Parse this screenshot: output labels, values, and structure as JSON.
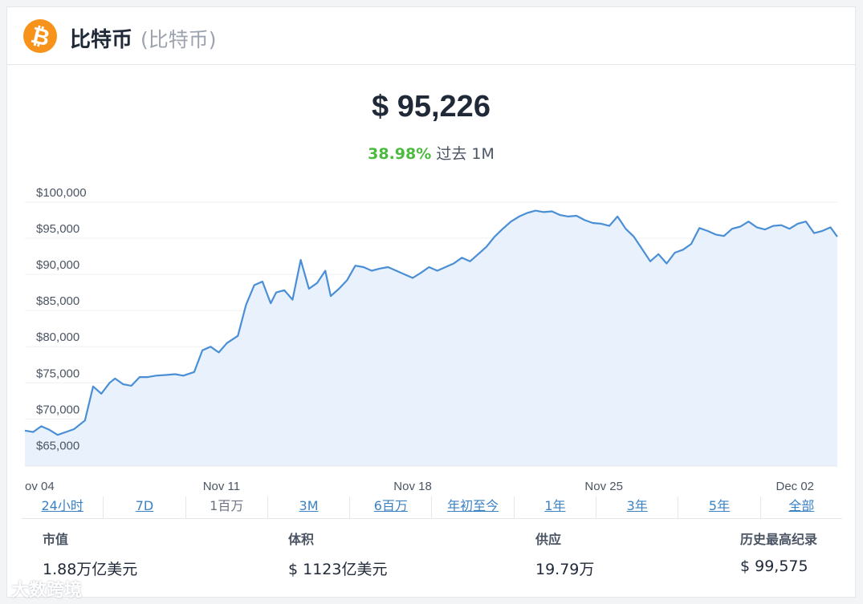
{
  "header": {
    "icon": "bitcoin-icon",
    "name": "比特币",
    "subtitle": "(比特币)"
  },
  "price": "$ 95,226",
  "change": {
    "percent": "38.98%",
    "period": "过去 1M"
  },
  "colors": {
    "line": "#4a8fd6",
    "fill": "#e8f1fc",
    "positive": "#4cba3e",
    "brand": "#f7931a"
  },
  "chart_data": {
    "type": "area",
    "x_tick_labels": [
      "ov 04",
      "Nov 11",
      "Nov 18",
      "Nov 25",
      "Dec 02"
    ],
    "y_tick_labels": [
      "$100,000",
      "$95,000",
      "$90,000",
      "$85,000",
      "$80,000",
      "$75,000",
      "$70,000",
      "$65,000"
    ],
    "y_ticks": [
      100000,
      95000,
      90000,
      85000,
      80000,
      75000,
      70000,
      65000
    ],
    "ylim": [
      63500,
      101200
    ],
    "xlim": [
      3.8,
      33.55
    ],
    "x_tick_values": [
      4,
      11,
      18,
      25,
      32
    ],
    "grid": true,
    "series": [
      {
        "x": [
          3.8,
          4.1,
          4.4,
          4.7,
          5.0,
          5.3,
          5.6,
          6.0,
          6.3,
          6.6,
          6.9,
          7.1,
          7.4,
          7.7,
          8.0,
          8.3,
          8.6,
          9.0,
          9.3,
          9.6,
          10.0,
          10.3,
          10.6,
          10.9,
          11.2,
          11.6,
          11.9,
          12.2,
          12.5,
          12.8,
          13.0,
          13.3,
          13.6,
          13.9,
          14.2,
          14.5,
          14.8,
          15.0,
          15.3,
          15.6,
          15.9,
          16.2,
          16.5,
          16.8,
          17.1,
          17.4,
          17.7,
          18.0,
          18.3,
          18.6,
          18.9,
          19.2,
          19.5,
          19.8,
          20.1,
          20.4,
          20.7,
          21.0,
          21.3,
          21.6,
          21.9,
          22.2,
          22.5,
          22.8,
          23.1,
          23.4,
          23.7,
          24.0,
          24.3,
          24.6,
          24.9,
          25.2,
          25.5,
          25.8,
          26.1,
          26.4,
          26.7,
          27.0,
          27.3,
          27.6,
          27.9,
          28.2,
          28.5,
          28.8,
          29.1,
          29.4,
          29.7,
          30.0,
          30.3,
          30.6,
          30.9,
          31.2,
          31.5,
          31.8,
          32.1,
          32.4,
          32.7,
          33.0,
          33.3,
          33.55
        ],
        "y": [
          68400,
          68200,
          69000,
          68500,
          67800,
          68200,
          68600,
          69800,
          74500,
          73500,
          75000,
          75600,
          74800,
          74600,
          75800,
          75800,
          76000,
          76100,
          76200,
          76000,
          76500,
          79500,
          80000,
          79200,
          80500,
          81500,
          85800,
          88500,
          89000,
          86000,
          87500,
          87800,
          86500,
          92000,
          88000,
          88800,
          90500,
          87000,
          88000,
          89200,
          91200,
          91000,
          90500,
          90800,
          91000,
          90500,
          90000,
          89500,
          90200,
          91000,
          90500,
          91000,
          91500,
          92300,
          91800,
          92800,
          93800,
          95200,
          96300,
          97300,
          98000,
          98500,
          98800,
          98600,
          98700,
          98200,
          98000,
          98100,
          97500,
          97100,
          97000,
          96700,
          98000,
          96300,
          95200,
          93500,
          91800,
          92800,
          91500,
          93000,
          93400,
          94200,
          96400,
          96000,
          95500,
          95300,
          96300,
          96600,
          97300,
          96500,
          96200,
          96700,
          96800,
          96300,
          97000,
          97300,
          95700,
          96000,
          96500,
          95200
        ]
      }
    ]
  },
  "ranges": [
    {
      "label": "24小时",
      "active": false
    },
    {
      "label": "7D",
      "active": false
    },
    {
      "label": "1百万",
      "active": true
    },
    {
      "label": "3M",
      "active": false
    },
    {
      "label": "6百万",
      "active": false
    },
    {
      "label": "年初至今",
      "active": false
    },
    {
      "label": "1年",
      "active": false
    },
    {
      "label": "3年",
      "active": false
    },
    {
      "label": "5年",
      "active": false
    },
    {
      "label": "全部",
      "active": false
    }
  ],
  "stats": {
    "market_cap": {
      "label": "市值",
      "value": "1.88万亿美元"
    },
    "volume": {
      "label": "体积",
      "value": "$ 1123亿美元"
    },
    "supply": {
      "label": "供应",
      "value": "19.79万"
    },
    "ath": {
      "label": "历史最高纪录",
      "value": "$ 99,575"
    }
  },
  "watermark": "大数跨境"
}
